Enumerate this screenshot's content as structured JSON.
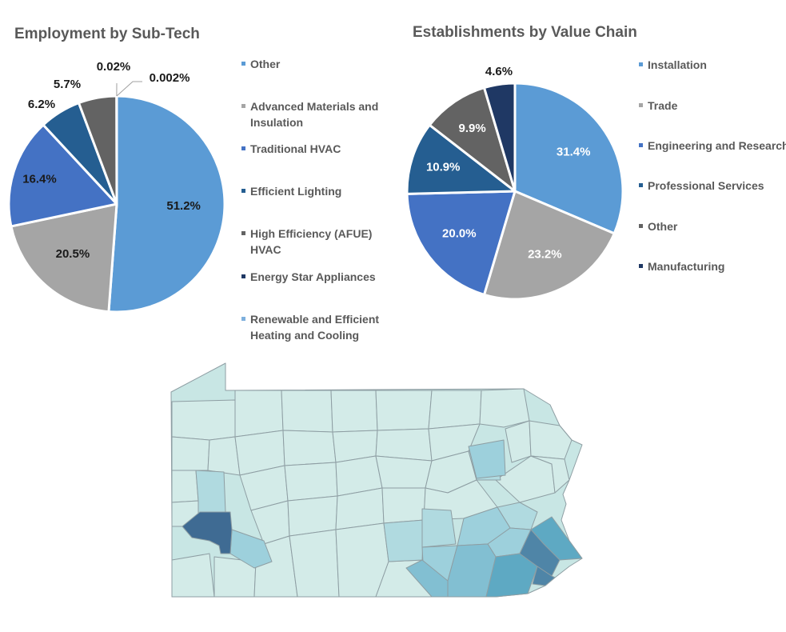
{
  "chart_data": [
    {
      "type": "pie",
      "title": "Employment by Sub-Tech",
      "categories": [
        "Other",
        "Advanced Materials and Insulation",
        "Traditional HVAC",
        "Efficient Lighting",
        "High Efficiency (AFUE) HVAC",
        "Energy Star Appliances",
        "Renewable and Efficient Heating and Cooling"
      ],
      "values": [
        51.2,
        20.5,
        16.4,
        6.2,
        5.7,
        0.02,
        0.002
      ],
      "data_labels": [
        "51.2%",
        "20.5%",
        "16.4%",
        "6.2%",
        "5.7%",
        "0.02%",
        "0.002%"
      ],
      "colors": [
        "#5b9bd5",
        "#a5a5a5",
        "#4472c4",
        "#255e91",
        "#636363",
        "#1f3864",
        "#7eb0dd"
      ],
      "legend_position": "right"
    },
    {
      "type": "pie",
      "title": "Establishments by Value Chain",
      "categories": [
        "Installation",
        "Trade",
        "Engineering and Research",
        "Professional Services",
        "Other",
        "Manufacturing"
      ],
      "values": [
        31.4,
        23.2,
        20.0,
        10.9,
        9.9,
        4.6
      ],
      "data_labels": [
        "31.4%",
        "23.2%",
        "20.0%",
        "10.9%",
        "9.9%",
        "4.6%"
      ],
      "colors": [
        "#5b9bd5",
        "#a5a5a5",
        "#4472c4",
        "#255e91",
        "#636363",
        "#1f3864"
      ],
      "legend_position": "right"
    }
  ],
  "map": {
    "region": "Pennsylvania counties",
    "colors": {
      "lightest": "#d3ebe8",
      "light": "#c8e6e4",
      "medium_light": "#b0dae0",
      "medium": "#9dd0dc",
      "medium_dark": "#82bfd2",
      "dark": "#5ea9c3",
      "darker": "#4f85a7",
      "darkest": "#3f6b93",
      "border": "#8e9ea3"
    }
  }
}
